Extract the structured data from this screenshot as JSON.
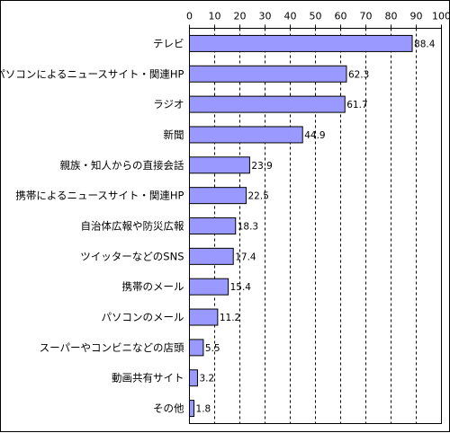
{
  "chart_data": {
    "type": "bar",
    "orientation": "horizontal",
    "categories": [
      "テレビ",
      "パソコンによるニュースサイト・関連HP",
      "ラジオ",
      "新聞",
      "親族・知人からの直接会話",
      "携帯によるニュースサイト・関連HP",
      "自治体広報や防災広報",
      "ツイッターなどのSNS",
      "携帯のメール",
      "パソコンのメール",
      "スーパーやコンビニなどの店頭",
      "動画共有サイト",
      "その他"
    ],
    "values": [
      88.4,
      62.3,
      61.7,
      44.9,
      23.9,
      22.5,
      18.3,
      17.4,
      15.4,
      11.2,
      5.5,
      3.2,
      1.8
    ],
    "value_labels": [
      "88.4",
      "62.3",
      "61.7",
      "44.9",
      "23.9",
      "22.5",
      "18.3",
      "17.4",
      "15.4",
      "11.2",
      "5.5",
      "3.2",
      "1.8"
    ],
    "xlim": [
      0,
      100
    ],
    "xticks": [
      "0",
      "10",
      "20",
      "30",
      "40",
      "50",
      "60",
      "70",
      "80",
      "90",
      "100"
    ],
    "axis_position": "top",
    "grid": "dashed vertical",
    "bar_color": "#9999ff",
    "bar_border_color": "#000000",
    "title": "",
    "xlabel": "",
    "ylabel": ""
  }
}
